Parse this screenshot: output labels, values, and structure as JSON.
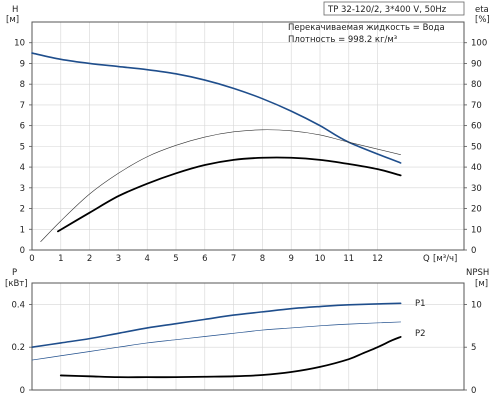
{
  "chart_data": [
    {
      "type": "line",
      "subtitle": "TP 32-120/2, 3*400 V, 50Hz",
      "annotations": [
        "Перекачиваемая жидкость = Вода",
        "Плотность = 998.2 кг/м³"
      ],
      "xlabel": "Q",
      "xunit": "[м³/ч]",
      "xlim": [
        0,
        15
      ],
      "xticks": [
        0,
        1,
        2,
        3,
        4,
        5,
        6,
        7,
        8,
        9,
        10,
        11,
        12
      ],
      "ylabel": "H",
      "yunit": "[м]",
      "ylim": [
        0,
        11
      ],
      "yticks": [
        0,
        1,
        2,
        3,
        4,
        5,
        6,
        7,
        8,
        9,
        10
      ],
      "y2label": "eta",
      "y2unit": "[%]",
      "y2lim": [
        0,
        110
      ],
      "y2ticks": [
        0,
        10,
        20,
        30,
        40,
        50,
        60,
        70,
        80,
        90,
        100
      ],
      "grid": true,
      "series": [
        {
          "axis": "left",
          "color": "#1f4e8c",
          "width": 1.6,
          "x": [
            0,
            1,
            2,
            3,
            4,
            5,
            6,
            7,
            8,
            9,
            10,
            11,
            12.8
          ],
          "y": [
            9.5,
            9.2,
            9.0,
            8.85,
            8.7,
            8.5,
            8.2,
            7.8,
            7.3,
            6.7,
            6.0,
            5.2,
            4.2
          ]
        },
        {
          "axis": "right",
          "color": "#000000",
          "width": 1.8,
          "x": [
            0.9,
            2,
            3,
            4,
            5,
            6,
            7,
            8,
            9,
            10,
            11,
            12,
            12.8
          ],
          "y": [
            9,
            18,
            26,
            32,
            37,
            41,
            43.5,
            44.5,
            44.5,
            43.5,
            41.5,
            39,
            36
          ]
        },
        {
          "axis": "right",
          "color": "#333333",
          "width": 0.6,
          "x": [
            0.3,
            1,
            2,
            3,
            4,
            5,
            6,
            7,
            8,
            9,
            10,
            11,
            12.8
          ],
          "y": [
            4,
            14,
            27,
            37,
            45,
            50.5,
            54.5,
            57,
            58,
            57.5,
            55.5,
            52,
            46
          ]
        }
      ]
    },
    {
      "type": "line",
      "ylabel": "P",
      "yunit": "[кВт]",
      "ylim": [
        0,
        0.5
      ],
      "yticks": [
        0,
        0.2,
        0.4
      ],
      "y2label": "NPSH",
      "y2unit": "[м]",
      "y2lim": [
        0,
        12.5
      ],
      "y2ticks": [
        0,
        5,
        10
      ],
      "xlim": [
        0,
        15
      ],
      "xticks": [
        0,
        1,
        2,
        3,
        4,
        5,
        6,
        7,
        8,
        9,
        10,
        11,
        12
      ],
      "grid": true,
      "series": [
        {
          "name": "P1",
          "axis": "left",
          "color": "#1f4e8c",
          "width": 1.6,
          "x": [
            0,
            1,
            2,
            3,
            4,
            5,
            6,
            7,
            8,
            9,
            10,
            11,
            12.8
          ],
          "y": [
            0.2,
            0.22,
            0.24,
            0.265,
            0.29,
            0.31,
            0.33,
            0.35,
            0.365,
            0.38,
            0.39,
            0.398,
            0.405
          ]
        },
        {
          "name": "P2",
          "axis": "left",
          "color": "#1f4e8c",
          "width": 0.7,
          "x": [
            0,
            1,
            2,
            3,
            4,
            5,
            6,
            7,
            8,
            9,
            10,
            11,
            12.8
          ],
          "y": [
            0.14,
            0.16,
            0.18,
            0.2,
            0.22,
            0.235,
            0.25,
            0.265,
            0.28,
            0.29,
            0.3,
            0.308,
            0.318
          ]
        },
        {
          "axis": "right",
          "color": "#000000",
          "width": 1.8,
          "x": [
            1,
            2,
            3,
            4,
            5,
            6,
            7,
            8,
            9,
            10,
            11,
            11.5,
            12,
            12.5,
            12.8
          ],
          "y": [
            1.7,
            1.6,
            1.5,
            1.5,
            1.5,
            1.55,
            1.6,
            1.75,
            2.1,
            2.7,
            3.6,
            4.3,
            5.0,
            5.8,
            6.2
          ]
        }
      ]
    }
  ]
}
